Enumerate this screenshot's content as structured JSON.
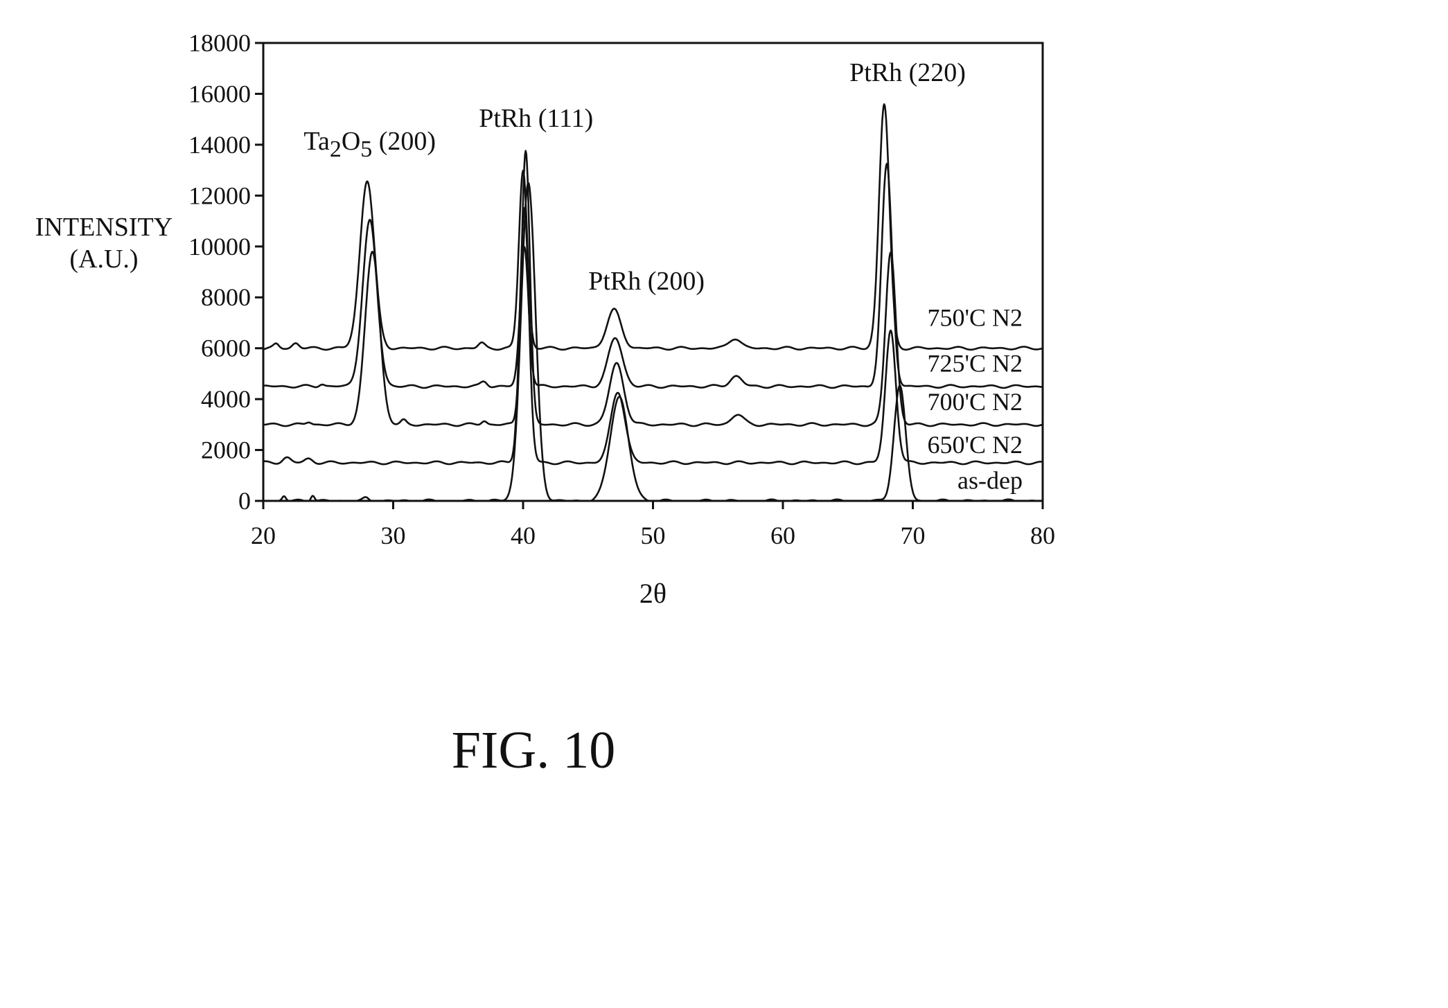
{
  "figure_label": "FIG. 10",
  "chart_data": {
    "type": "line",
    "title": "",
    "xlabel": "2θ",
    "ylabel": "INTENSITY (A.U.)",
    "ylabel_lines": [
      "INTENSITY",
      "(A.U.)"
    ],
    "xlim": [
      20,
      80
    ],
    "ylim": [
      0,
      18000
    ],
    "x_ticks": [
      20,
      30,
      40,
      50,
      60,
      70,
      80
    ],
    "y_ticks": [
      0,
      2000,
      4000,
      6000,
      8000,
      10000,
      12000,
      14000,
      16000,
      18000
    ],
    "grid": false,
    "legend": "none (series labeled at right end)",
    "colors": {
      "line": "#111111",
      "background": "#ffffff"
    },
    "peak_labels": [
      {
        "x": 28.2,
        "y": 13800,
        "text": "Ta2O5 (200)",
        "formula": [
          "Ta",
          "2",
          "O",
          "5",
          " (200)"
        ]
      },
      {
        "x": 41.0,
        "y": 14700,
        "text": "PtRh (111)"
      },
      {
        "x": 49.5,
        "y": 8300,
        "text": "PtRh (200)"
      },
      {
        "x": 69.6,
        "y": 16500,
        "text": "PtRh (220)"
      }
    ],
    "series": [
      {
        "name": "750'C N2",
        "label_y": 7200,
        "baseline": 6000,
        "peaks": [
          {
            "x": 28.0,
            "h": 6600,
            "w": 0.55
          },
          {
            "x": 40.0,
            "h": 7000,
            "w": 0.32
          },
          {
            "x": 47.0,
            "h": 1500,
            "w": 0.55
          },
          {
            "x": 56.3,
            "h": 400,
            "w": 0.45
          },
          {
            "x": 67.8,
            "h": 9600,
            "w": 0.4
          },
          {
            "x": 36.8,
            "h": 200,
            "w": 0.25
          },
          {
            "x": 22.5,
            "h": 200,
            "w": 0.25
          },
          {
            "x": 21.0,
            "h": 150,
            "w": 0.2
          }
        ]
      },
      {
        "name": "725'C N2",
        "label_y": 5400,
        "baseline": 4500,
        "peaks": [
          {
            "x": 28.2,
            "h": 6500,
            "w": 0.55
          },
          {
            "x": 40.1,
            "h": 5500,
            "w": 0.32
          },
          {
            "x": 47.1,
            "h": 1900,
            "w": 0.55
          },
          {
            "x": 56.4,
            "h": 400,
            "w": 0.45
          },
          {
            "x": 68.0,
            "h": 8700,
            "w": 0.4
          },
          {
            "x": 37.0,
            "h": 200,
            "w": 0.25
          },
          {
            "x": 24.5,
            "h": 100,
            "w": 0.2
          }
        ]
      },
      {
        "name": "700'C N2",
        "label_y": 3900,
        "baseline": 3000,
        "peaks": [
          {
            "x": 28.4,
            "h": 6800,
            "w": 0.55
          },
          {
            "x": 40.2,
            "h": 10800,
            "w": 0.32
          },
          {
            "x": 47.2,
            "h": 2400,
            "w": 0.55
          },
          {
            "x": 56.5,
            "h": 400,
            "w": 0.45
          },
          {
            "x": 68.3,
            "h": 6800,
            "w": 0.4
          },
          {
            "x": 30.8,
            "h": 150,
            "w": 0.2
          },
          {
            "x": 37.0,
            "h": 150,
            "w": 0.2
          },
          {
            "x": 23.5,
            "h": 100,
            "w": 0.2
          }
        ]
      },
      {
        "name": "650'C N2",
        "label_y": 2200,
        "baseline": 1500,
        "peaks": [
          {
            "x": 40.1,
            "h": 10000,
            "w": 0.35
          },
          {
            "x": 47.3,
            "h": 2800,
            "w": 0.55
          },
          {
            "x": 68.3,
            "h": 5200,
            "w": 0.4
          },
          {
            "x": 21.8,
            "h": 200,
            "w": 0.3
          },
          {
            "x": 23.5,
            "h": 150,
            "w": 0.3
          }
        ]
      },
      {
        "name": "as-dep",
        "label_y": 800,
        "baseline": 0,
        "peaks": [
          {
            "x": 40.4,
            "h": 12500,
            "w": 0.55
          },
          {
            "x": 47.4,
            "h": 4100,
            "w": 0.7
          },
          {
            "x": 69.0,
            "h": 4500,
            "w": 0.45
          },
          {
            "x": 21.6,
            "h": 200,
            "w": 0.15
          },
          {
            "x": 23.8,
            "h": 250,
            "w": 0.15
          },
          {
            "x": 27.9,
            "h": 100,
            "w": 0.2
          }
        ]
      }
    ]
  }
}
